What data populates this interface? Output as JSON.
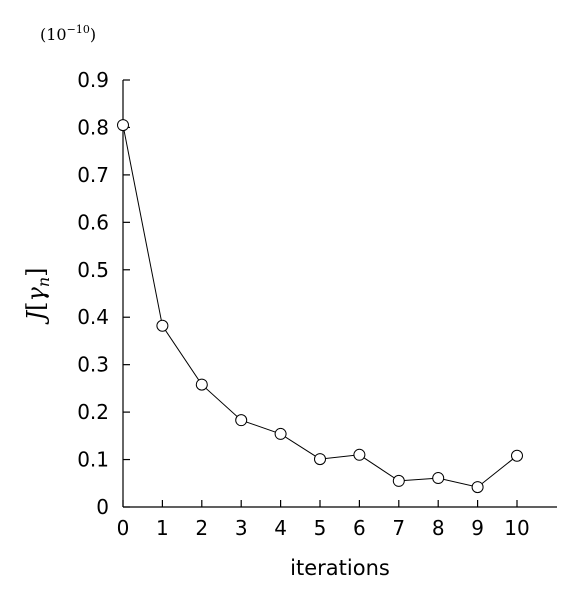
{
  "chart_data": {
    "type": "line",
    "scale_note": {
      "base": "(10",
      "exponent": "−10",
      "close": ")"
    },
    "ylabel": {
      "main": "J",
      "open": "[",
      "symbol": "γ",
      "sub": "n",
      "close": "]"
    },
    "xlabel": "iterations",
    "x": [
      0,
      1,
      2,
      3,
      4,
      5,
      6,
      7,
      8,
      9,
      10
    ],
    "series": [
      {
        "values": [
          0.805,
          0.382,
          0.258,
          0.183,
          0.154,
          0.101,
          0.11,
          0.055,
          0.061,
          0.042,
          0.108
        ],
        "marker": "open-circle",
        "color": "#000000"
      }
    ],
    "xlim": [
      0,
      11
    ],
    "ylim": [
      0,
      0.9
    ],
    "xticks": [
      "0",
      "1",
      "2",
      "3",
      "4",
      "5",
      "6",
      "7",
      "8",
      "9",
      "10"
    ],
    "yticks": [
      "0",
      "0.1",
      "0.2",
      "0.3",
      "0.4",
      "0.5",
      "0.6",
      "0.7",
      "0.8",
      "0.9"
    ],
    "grid": false
  }
}
